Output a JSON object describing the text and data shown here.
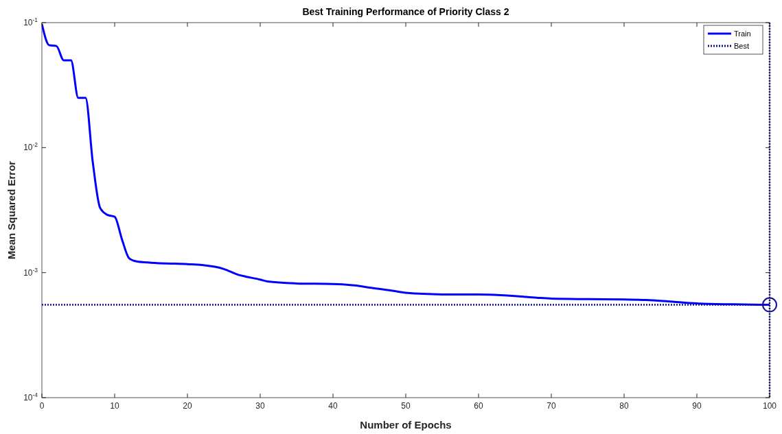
{
  "chart_data": {
    "type": "line",
    "title": "Best Training Performance of Priority Class 2",
    "xlabel": "Number of Epochs",
    "ylabel": "Mean Squared Error",
    "log": "y",
    "grid": false,
    "legend": "top right",
    "xlim": [
      0,
      100
    ],
    "xticks": [
      0,
      10,
      20,
      30,
      40,
      50,
      60,
      70,
      80,
      90,
      100
    ],
    "ylim": [
      0.0001,
      0.1
    ],
    "yticks": [
      {
        "value": 0.0001,
        "label": "10$^{-4}$"
      },
      {
        "value": 0.001,
        "label": "10$^{-3}$"
      },
      {
        "value": 0.01,
        "label": "10$^{-2}$"
      },
      {
        "value": 0.1,
        "label": "10$^{-1}$"
      }
    ],
    "series": [
      {
        "name": "Train",
        "color": "#0000ff",
        "line_style": "solid",
        "x": [
          0,
          1,
          2,
          3,
          4,
          5,
          6,
          7,
          8,
          9,
          10,
          11,
          12,
          13,
          15,
          20,
          22,
          25,
          27,
          28,
          30,
          31,
          35,
          40,
          43,
          45,
          48,
          50,
          55,
          60,
          63,
          65,
          68,
          70,
          75,
          80,
          83,
          86,
          90,
          95,
          100
        ],
        "values": [
          0.0975,
          0.066,
          0.065,
          0.05,
          0.05,
          0.025,
          0.025,
          0.0076,
          0.0033,
          0.0029,
          0.0028,
          0.00185,
          0.0013,
          0.00123,
          0.0012,
          0.00117,
          0.00115,
          0.00107,
          0.00096,
          0.00093,
          0.00088,
          0.00085,
          0.00082,
          0.00081,
          0.00079,
          0.00076,
          0.00072,
          0.00069,
          0.00067,
          0.000668,
          0.00066,
          0.00065,
          0.00063,
          0.00062,
          0.000614,
          0.00061,
          0.000605,
          0.00059,
          0.000567,
          0.000558,
          0.000553
        ]
      },
      {
        "name": "Best",
        "color": "#1010a0",
        "line_style": "dotted",
        "x": [
          0,
          100
        ],
        "values": [
          0.000553,
          0.000553
        ]
      },
      {
        "type": "scatter",
        "color": "#1010a0",
        "marker": "circle",
        "x": [
          100
        ],
        "values": [
          0.000553
        ]
      }
    ],
    "ref_lines": [
      {
        "axis": "x",
        "value": 100,
        "color": "#1010a0",
        "line_style": "dotted"
      }
    ]
  }
}
